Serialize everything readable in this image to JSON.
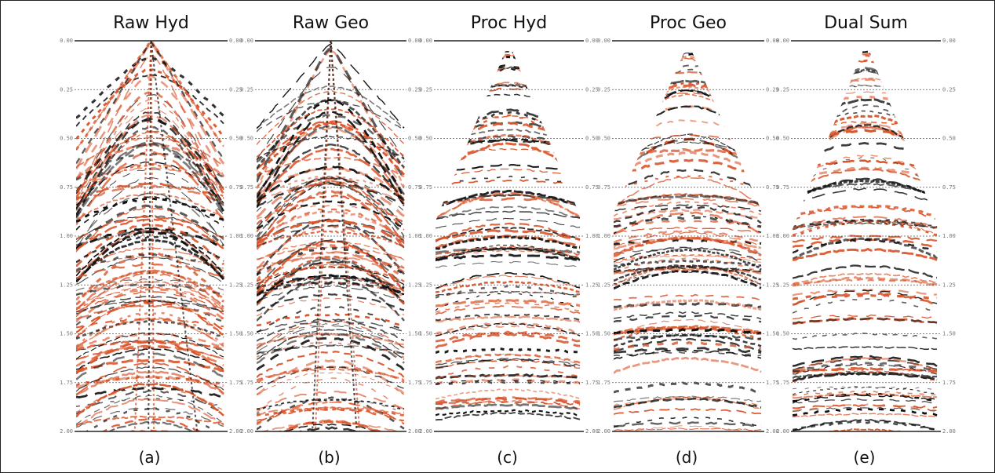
{
  "panels": [
    {
      "title": "Raw Hyd",
      "caption": "(a)"
    },
    {
      "title": "Raw Geo",
      "caption": "(b)"
    },
    {
      "title": "Proc Hyd",
      "caption": "(c)"
    },
    {
      "title": "Proc Geo",
      "caption": "(d)"
    },
    {
      "title": "Dual Sum",
      "caption": "(e)"
    }
  ],
  "time_ticks": [
    "0.00",
    "0.25",
    "0.50",
    "0.75",
    "1.00",
    "1.25",
    "1.50",
    "1.75",
    "2.00"
  ]
}
